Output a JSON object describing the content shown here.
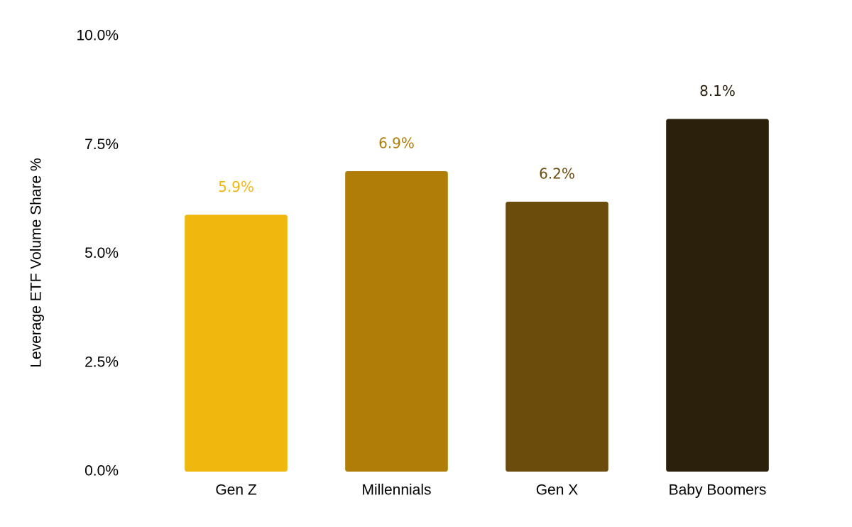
{
  "chart_data": {
    "type": "bar",
    "y_label": "Leverage ETF Volume Share %",
    "categories": [
      "Gen Z",
      "Millennials",
      "Gen X",
      "Baby Boomers"
    ],
    "values": [
      5.9,
      6.9,
      6.2,
      8.1
    ],
    "value_labels": [
      "5.9%",
      "6.9%",
      "6.2%",
      "8.1%"
    ],
    "colors": [
      "#f0b80e",
      "#b07d07",
      "#6b4c0c",
      "#2a200b"
    ],
    "ylim": [
      0,
      10
    ],
    "yticks": [
      {
        "value": 0,
        "label": "0.0%"
      },
      {
        "value": 2.5,
        "label": "2.5%"
      },
      {
        "value": 5,
        "label": "5.0%"
      },
      {
        "value": 7.5,
        "label": "7.5%"
      },
      {
        "value": 10,
        "label": "10.0%"
      }
    ],
    "grid": false
  }
}
